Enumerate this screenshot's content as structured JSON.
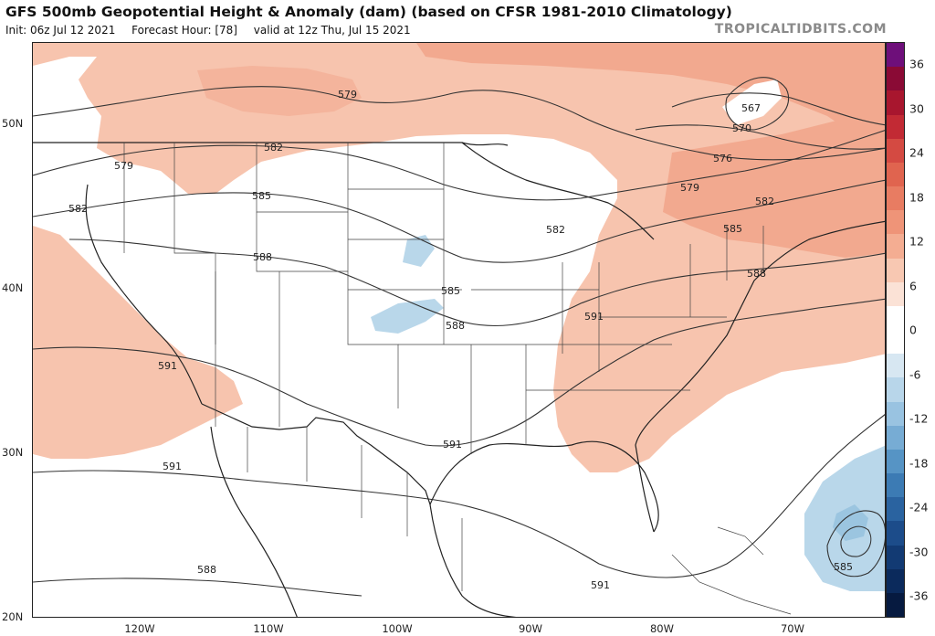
{
  "header": {
    "title": "GFS 500mb Geopotential Height & Anomaly (dam) (based on CFSR 1981-2010 Climatology)",
    "init": "Init: 06z Jul 12 2021",
    "forecast_hour": "Forecast Hour: [78]",
    "valid": "valid at 12z Thu, Jul 15 2021",
    "watermark": "TROPICALTIDBITS.COM"
  },
  "axes": {
    "latitude_labels": [
      "50N",
      "40N",
      "30N",
      "20N"
    ],
    "longitude_labels": [
      "120W",
      "110W",
      "100W",
      "90W",
      "80W",
      "70W"
    ]
  },
  "colorbar": {
    "ticks": [
      "36",
      "30",
      "24",
      "18",
      "12",
      "6",
      "0",
      "-6",
      "-12",
      "-18",
      "-24",
      "-30",
      "-36"
    ],
    "segments": [
      "#6e0f7a",
      "#8a0a35",
      "#a8162e",
      "#c22a34",
      "#d44a42",
      "#e0644f",
      "#e87c62",
      "#ef9478",
      "#f4ad92",
      "#f8c8b2",
      "#fbe2d6",
      "#ffffff",
      "#ffffff",
      "#d7e7f2",
      "#b8d6ea",
      "#99c3e1",
      "#77acd4",
      "#5694c5",
      "#3c7bb4",
      "#2a63a0",
      "#1c4c8a",
      "#123a73",
      "#0b2a5c",
      "#061a40"
    ]
  },
  "contour_labels": [
    "579",
    "582",
    "585",
    "588",
    "591",
    "567",
    "570",
    "576",
    "579",
    "582",
    "585",
    "588",
    "591",
    "591",
    "591",
    "588",
    "591",
    "585",
    "582",
    "585",
    "588",
    "579",
    "582"
  ],
  "colors": {
    "positive_anomaly": "#f7c4ae",
    "negative_anomaly": "#b9d7ea",
    "contour": "#333333",
    "boundary": "#222222"
  }
}
